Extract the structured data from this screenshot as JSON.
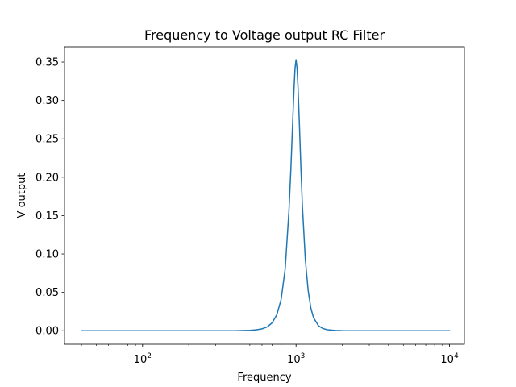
{
  "chart_data": {
    "type": "line",
    "title": "Frequency to Voltage output RC Filter",
    "xlabel": "Frequency",
    "ylabel": "V output",
    "xscale": "log",
    "xlim": [
      31,
      12500
    ],
    "ylim": [
      -0.0176,
      0.37
    ],
    "grid": false,
    "legend": "none",
    "x_ticks": [
      {
        "base": "10",
        "exp": "2",
        "value": 100
      },
      {
        "base": "10",
        "exp": "3",
        "value": 1000
      },
      {
        "base": "10",
        "exp": "4",
        "value": 10000
      }
    ],
    "y_ticks": [
      {
        "label": "0.00",
        "value": 0.0
      },
      {
        "label": "0.05",
        "value": 0.05
      },
      {
        "label": "0.10",
        "value": 0.1
      },
      {
        "label": "0.15",
        "value": 0.15
      },
      {
        "label": "0.20",
        "value": 0.2
      },
      {
        "label": "0.25",
        "value": 0.25
      },
      {
        "label": "0.30",
        "value": 0.3
      },
      {
        "label": "0.35",
        "value": 0.35
      }
    ],
    "series": [
      {
        "color": "#1f77b4",
        "x": [
          40,
          100,
          200,
          300,
          400,
          500,
          550,
          600,
          650,
          700,
          750,
          800,
          850,
          900,
          925,
          950,
          970,
          985,
          1000,
          1015,
          1030,
          1050,
          1075,
          1100,
          1150,
          1200,
          1250,
          1300,
          1400,
          1500,
          1600,
          1800,
          2000,
          2500,
          3000,
          5000,
          10000
        ],
        "y": [
          0.0,
          0.0,
          0.0,
          0.0,
          0.0,
          0.0005,
          0.0012,
          0.0025,
          0.005,
          0.0105,
          0.021,
          0.041,
          0.081,
          0.158,
          0.21,
          0.27,
          0.315,
          0.342,
          0.353,
          0.342,
          0.317,
          0.272,
          0.213,
          0.162,
          0.092,
          0.052,
          0.029,
          0.017,
          0.0065,
          0.0028,
          0.0013,
          0.0004,
          0.0001,
          0.0,
          0.0,
          0.0,
          0.0
        ]
      }
    ]
  }
}
